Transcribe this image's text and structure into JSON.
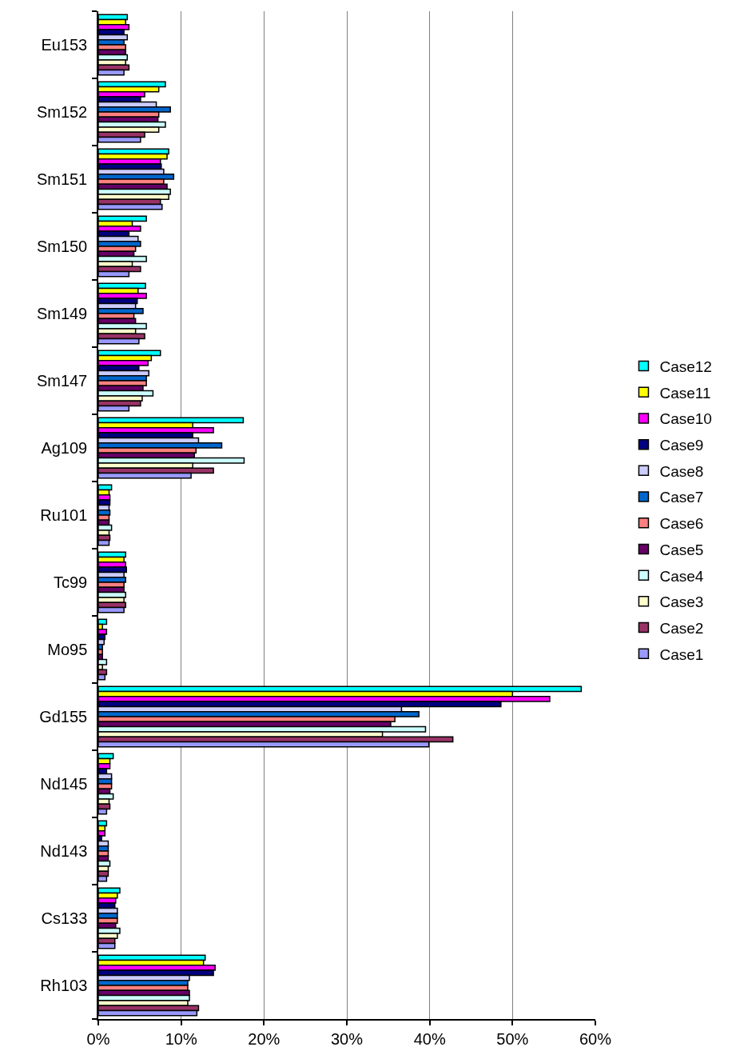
{
  "chart_data": {
    "type": "bar",
    "orientation": "horizontal",
    "categories": [
      "Eu153",
      "Sm152",
      "Sm151",
      "Sm150",
      "Sm149",
      "Sm147",
      "Ag109",
      "Ru101",
      "Tc99",
      "Mo95",
      "Gd155",
      "Nd145",
      "Nd143",
      "Cs133",
      "Rh103"
    ],
    "series": [
      {
        "name": "Case12",
        "color": "#00ffff",
        "values": [
          3.5,
          8.1,
          8.5,
          5.8,
          5.7,
          7.5,
          17.5,
          1.6,
          3.3,
          1.0,
          58.3,
          1.8,
          1.0,
          2.6,
          12.9
        ]
      },
      {
        "name": "Case11",
        "color": "#ffff00",
        "values": [
          3.3,
          7.3,
          8.3,
          4.1,
          4.8,
          6.4,
          11.4,
          1.3,
          3.1,
          0.5,
          50.0,
          1.4,
          0.8,
          2.3,
          12.7
        ]
      },
      {
        "name": "Case10",
        "color": "#ff00ff",
        "values": [
          3.7,
          5.6,
          7.5,
          5.1,
          5.8,
          6.0,
          13.9,
          1.4,
          3.3,
          1.0,
          54.5,
          1.4,
          0.8,
          2.1,
          14.1
        ]
      },
      {
        "name": "Case9",
        "color": "#000080",
        "values": [
          3.1,
          5.1,
          7.6,
          3.7,
          4.7,
          4.9,
          11.4,
          1.4,
          3.4,
          0.8,
          48.6,
          1.0,
          0.4,
          2.0,
          13.9
        ]
      },
      {
        "name": "Case8",
        "color": "#ccccff",
        "values": [
          3.5,
          7.0,
          7.9,
          4.8,
          4.5,
          6.1,
          12.1,
          1.3,
          3.1,
          0.7,
          36.6,
          1.6,
          1.2,
          2.3,
          11.0
        ]
      },
      {
        "name": "Case7",
        "color": "#0066cc",
        "values": [
          3.1,
          8.7,
          9.1,
          5.1,
          5.4,
          5.8,
          14.9,
          1.4,
          3.3,
          0.5,
          38.7,
          1.6,
          1.2,
          2.3,
          10.8
        ]
      },
      {
        "name": "Case6",
        "color": "#ff8080",
        "values": [
          3.3,
          7.3,
          7.9,
          4.5,
          4.3,
          5.8,
          11.8,
          1.3,
          3.1,
          0.5,
          35.8,
          1.6,
          1.2,
          2.3,
          10.8
        ]
      },
      {
        "name": "Case5",
        "color": "#660066",
        "values": [
          3.3,
          7.2,
          8.3,
          4.3,
          4.5,
          5.4,
          11.6,
          1.3,
          3.1,
          0.5,
          35.3,
          1.4,
          1.2,
          2.1,
          11.0
        ]
      },
      {
        "name": "Case4",
        "color": "#ccffff",
        "values": [
          3.5,
          8.1,
          8.7,
          5.8,
          5.8,
          6.6,
          17.6,
          1.6,
          3.3,
          1.0,
          39.5,
          1.8,
          1.4,
          2.6,
          11.0
        ]
      },
      {
        "name": "Case3",
        "color": "#ffffcc",
        "values": [
          3.3,
          7.3,
          8.5,
          4.1,
          4.5,
          5.3,
          11.4,
          1.3,
          3.1,
          0.5,
          34.3,
          1.3,
          1.2,
          2.3,
          10.8
        ]
      },
      {
        "name": "Case2",
        "color": "#993366",
        "values": [
          3.7,
          5.6,
          7.5,
          5.1,
          5.6,
          5.1,
          13.9,
          1.4,
          3.3,
          1.0,
          42.8,
          1.4,
          1.2,
          2.0,
          12.1
        ]
      },
      {
        "name": "Case1",
        "color": "#9999ff",
        "values": [
          3.1,
          5.1,
          7.7,
          3.7,
          4.9,
          3.7,
          11.2,
          1.3,
          3.1,
          0.8,
          39.9,
          1.0,
          1.0,
          2.0,
          11.9
        ]
      }
    ],
    "xlim": [
      0,
      60
    ],
    "xticks": [
      {
        "value": 0,
        "label": "0%"
      },
      {
        "value": 10,
        "label": "10%"
      },
      {
        "value": 20,
        "label": "20%"
      },
      {
        "value": 30,
        "label": "30%"
      },
      {
        "value": 40,
        "label": "40%"
      },
      {
        "value": 50,
        "label": "50%"
      },
      {
        "value": 60,
        "label": "60%"
      }
    ],
    "grid": "x",
    "legend": "right"
  }
}
